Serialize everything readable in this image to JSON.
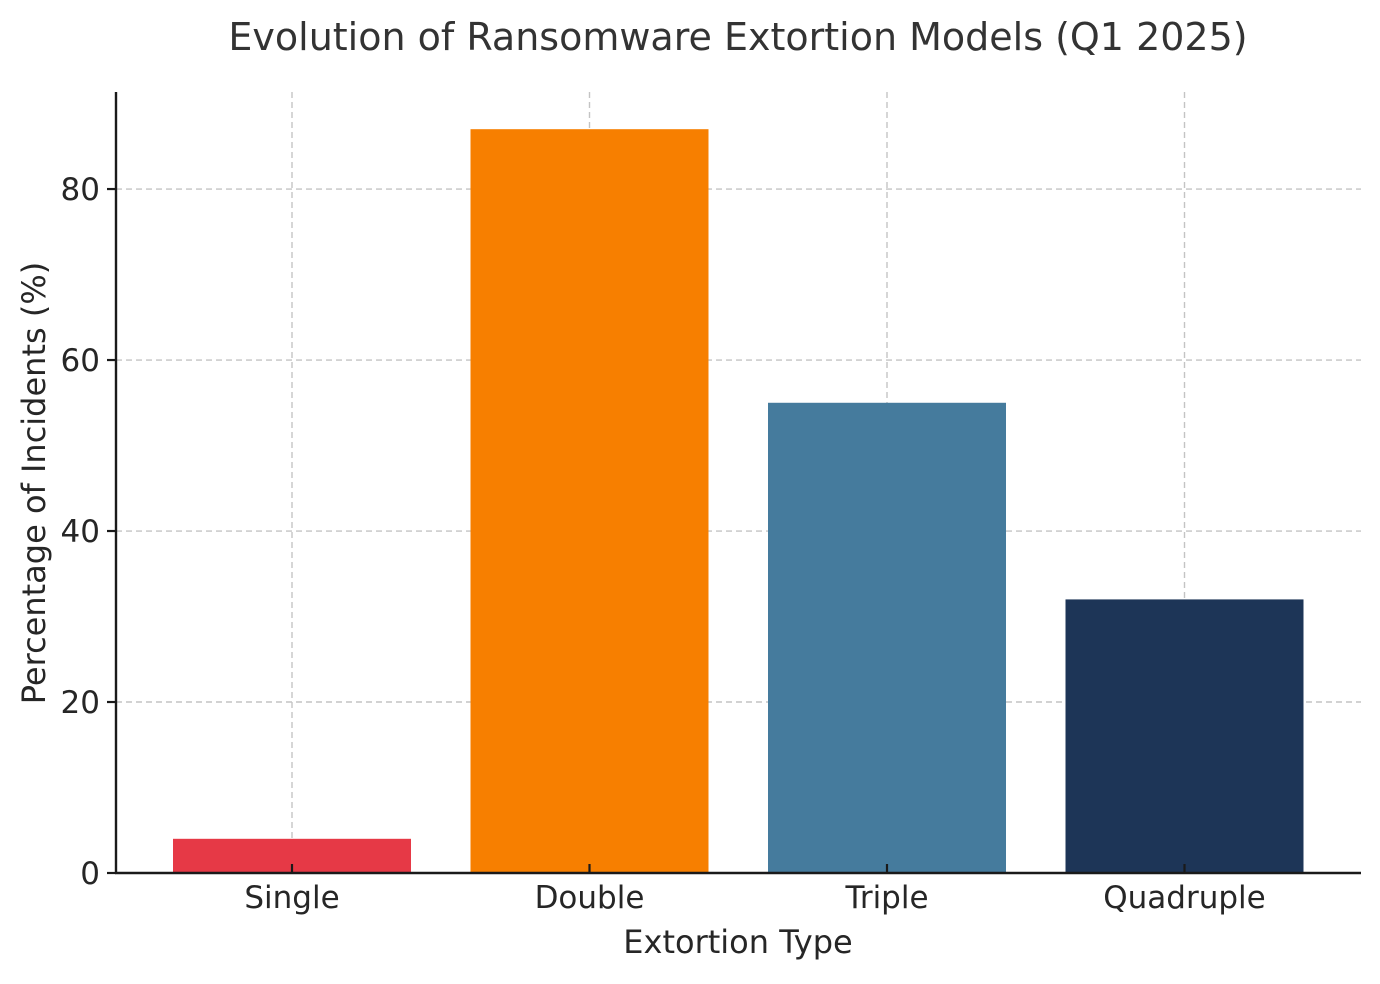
{
  "chart_data": {
    "type": "bar",
    "title": "Evolution of Ransomware Extortion Models (Q1 2025)",
    "xlabel": "Extortion Type",
    "ylabel": "Percentage of Incidents (%)",
    "categories": [
      "Single",
      "Double",
      "Triple",
      "Quadruple"
    ],
    "values": [
      4,
      87,
      55,
      32
    ],
    "colors": [
      "#e63946",
      "#f77f00",
      "#457b9d",
      "#1d3557"
    ],
    "ylim": [
      0,
      91.35
    ],
    "yticks": [
      0,
      20,
      40,
      60,
      80
    ],
    "grid": true,
    "legend": "none"
  }
}
